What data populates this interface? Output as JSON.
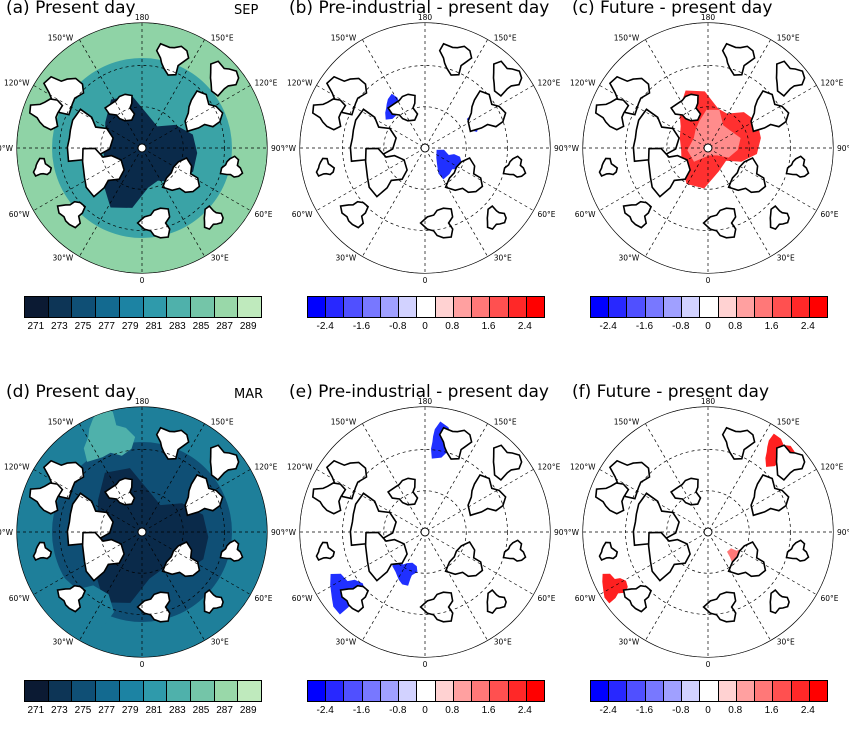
{
  "panels": [
    {
      "title": "(a) Present day",
      "month": "SEP",
      "type": "abs",
      "season": "sep"
    },
    {
      "title": "(b) Pre-industrial - present day",
      "month": "",
      "type": "diff",
      "season": "sep",
      "sign": "neg"
    },
    {
      "title": "(c) Future - present day",
      "month": "",
      "type": "diff",
      "season": "sep",
      "sign": "pos"
    },
    {
      "title": "(d) Present day",
      "month": "MAR",
      "type": "abs",
      "season": "mar"
    },
    {
      "title": "(e) Pre-industrial - present day",
      "month": "",
      "type": "diff",
      "season": "mar",
      "sign": "neg"
    },
    {
      "title": "(f) Future - present day",
      "month": "",
      "type": "diff",
      "season": "mar",
      "sign": "pos"
    }
  ],
  "grid_labels": {
    "top": "180",
    "bottom": "0",
    "left": "90°W",
    "right": "90°E",
    "w150": "150°W",
    "w120": "120°W",
    "w60": "60°W",
    "w30": "30°W",
    "e150": "150°E",
    "e120": "120°E",
    "e60": "60°E",
    "e30": "30°E"
  },
  "abs_colorbar": {
    "colors": [
      "#0b1a33",
      "#0d3556",
      "#0f4f75",
      "#136a90",
      "#1c83a3",
      "#2f9aab",
      "#4fb1ab",
      "#74c5a8",
      "#99d8a9",
      "#bfeabd"
    ],
    "labels": [
      "271",
      "273",
      "275",
      "277",
      "279",
      "281",
      "283",
      "285",
      "287",
      "289"
    ]
  },
  "diff_colorbar": {
    "colors": [
      "#0000ff",
      "#2828ff",
      "#5050ff",
      "#7878ff",
      "#a0a0ff",
      "#d2d2ff",
      "#ffffff",
      "#ffd2d2",
      "#ffa0a0",
      "#ff7878",
      "#ff5050",
      "#ff2828",
      "#ff0000"
    ],
    "labels": [
      "-2.4",
      "-1.6",
      "-0.8",
      "0",
      "0.8",
      "1.6",
      "2.4"
    ]
  },
  "map_colors": {
    "ice": "#0a2a4a",
    "ocean_mid": "#1e7f9a",
    "ocean_warm": "#8fd3a6",
    "neg": "#2030ff",
    "pos": "#ff2020"
  }
}
